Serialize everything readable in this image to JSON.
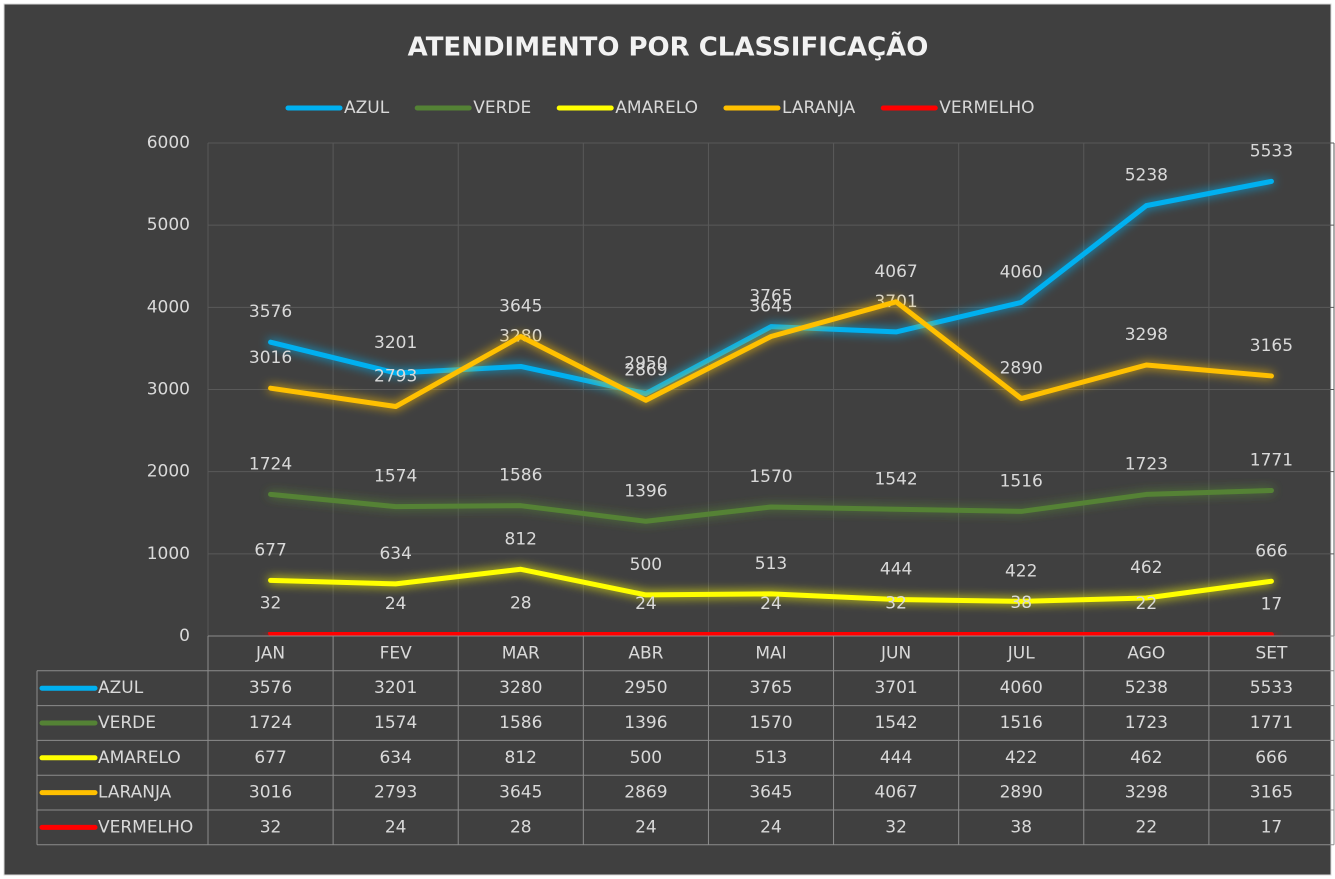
{
  "chart_data": {
    "type": "line",
    "title": "ATENDIMENTO POR CLASSIFICAÇÃO",
    "categories": [
      "JAN",
      "FEV",
      "MAR",
      "ABR",
      "MAI",
      "JUN",
      "JUL",
      "AGO",
      "SET"
    ],
    "series": [
      {
        "name": "AZUL",
        "color": "#00b0f0",
        "values": [
          3576,
          3201,
          3280,
          2950,
          3765,
          3701,
          4060,
          5238,
          5533
        ]
      },
      {
        "name": "VERDE",
        "color": "#548235",
        "values": [
          1724,
          1574,
          1586,
          1396,
          1570,
          1542,
          1516,
          1723,
          1771
        ]
      },
      {
        "name": "AMARELO",
        "color": "#ffff00",
        "values": [
          677,
          634,
          812,
          500,
          513,
          444,
          422,
          462,
          666
        ]
      },
      {
        "name": "LARANJA",
        "color": "#ffc000",
        "values": [
          3016,
          2793,
          3645,
          2869,
          3645,
          4067,
          2890,
          3298,
          3165
        ]
      },
      {
        "name": "VERMELHO",
        "color": "#ff0000",
        "values": [
          32,
          24,
          28,
          24,
          24,
          32,
          38,
          22,
          17
        ]
      }
    ],
    "ylim": [
      0,
      6000
    ],
    "yticks": [
      0,
      1000,
      2000,
      3000,
      4000,
      5000,
      6000
    ],
    "grid": true,
    "legend": "top"
  }
}
